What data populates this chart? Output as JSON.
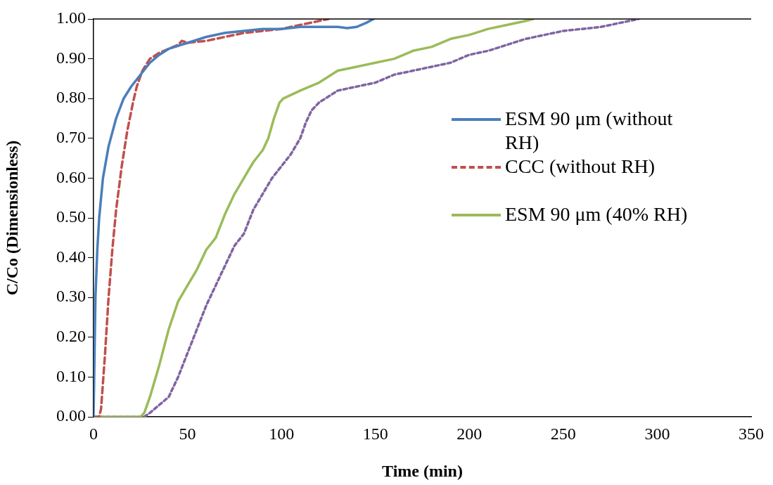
{
  "chart_data": {
    "type": "line",
    "xlabel": "Time (min)",
    "ylabel": "C/Co (Dimensionless)",
    "xlim": [
      0,
      350
    ],
    "xticks": [
      0,
      50,
      100,
      150,
      200,
      250,
      300,
      350
    ],
    "ylim": [
      0,
      1
    ],
    "yticks": [
      {
        "value": 0,
        "label": "0.00"
      },
      {
        "value": 0.1,
        "label": "0.10"
      },
      {
        "value": 0.2,
        "label": "0.20"
      },
      {
        "value": 0.3,
        "label": "0.30"
      },
      {
        "value": 0.4,
        "label": "0.40"
      },
      {
        "value": 0.5,
        "label": "0.50"
      },
      {
        "value": 0.6,
        "label": "0.60"
      },
      {
        "value": 0.7,
        "label": "0.70"
      },
      {
        "value": 0.8,
        "label": "0.80"
      },
      {
        "value": 0.9,
        "label": "0.90"
      },
      {
        "value": 1,
        "label": "1.00"
      }
    ],
    "grid": false,
    "legend": "right",
    "marker": "none",
    "series": [
      {
        "name": "ESM 90 μm (without RH)",
        "color": "#4a7ebb",
        "line_style": "solid",
        "x": [
          0,
          0.5,
          1,
          2,
          3,
          5,
          8,
          12,
          16,
          20,
          25,
          30,
          35,
          40,
          50,
          60,
          70,
          80,
          90,
          100,
          110,
          120,
          130,
          135,
          140,
          145,
          149
        ],
        "values": [
          0,
          0.15,
          0.3,
          0.42,
          0.5,
          0.6,
          0.68,
          0.75,
          0.8,
          0.83,
          0.86,
          0.89,
          0.91,
          0.925,
          0.94,
          0.955,
          0.965,
          0.97,
          0.975,
          0.975,
          0.98,
          0.98,
          0.98,
          0.977,
          0.98,
          0.99,
          1.0
        ]
      },
      {
        "name": "CCC (without RH)",
        "color": "#c0504d",
        "line_style": "dashed",
        "x": [
          0,
          3,
          4,
          6,
          8,
          10,
          12,
          15,
          18,
          21,
          23,
          26,
          30,
          35,
          40,
          45,
          47,
          50,
          60,
          70,
          80,
          90,
          100,
          110,
          120,
          125
        ],
        "values": [
          0,
          0,
          0.02,
          0.15,
          0.3,
          0.42,
          0.52,
          0.63,
          0.72,
          0.79,
          0.83,
          0.87,
          0.9,
          0.915,
          0.925,
          0.935,
          0.945,
          0.94,
          0.945,
          0.955,
          0.965,
          0.97,
          0.975,
          0.985,
          0.995,
          1.0
        ]
      },
      {
        "name": "ESM 90 μm (40% RH)",
        "color": "#9bbb59",
        "line_style": "solid",
        "x": [
          0,
          25,
          27,
          30,
          35,
          40,
          45,
          50,
          55,
          60,
          65,
          70,
          75,
          80,
          85,
          90,
          93,
          96,
          99,
          101,
          110,
          120,
          130,
          140,
          150,
          160,
          170,
          180,
          190,
          200,
          210,
          220,
          230,
          234
        ],
        "values": [
          0,
          0,
          0.01,
          0.05,
          0.13,
          0.22,
          0.29,
          0.33,
          0.37,
          0.42,
          0.45,
          0.51,
          0.56,
          0.6,
          0.64,
          0.67,
          0.7,
          0.75,
          0.79,
          0.8,
          0.82,
          0.84,
          0.87,
          0.88,
          0.89,
          0.9,
          0.92,
          0.93,
          0.95,
          0.96,
          0.975,
          0.985,
          0.995,
          1.0
        ]
      },
      {
        "color": "#8064a2",
        "line_style": "dotted",
        "x": [
          0,
          27,
          30,
          35,
          40,
          45,
          50,
          55,
          60,
          65,
          70,
          75,
          80,
          85,
          90,
          95,
          100,
          105,
          110,
          113,
          116,
          120,
          130,
          140,
          150,
          160,
          170,
          180,
          190,
          200,
          210,
          220,
          230,
          240,
          250,
          260,
          270,
          280,
          290
        ],
        "values": [
          0,
          0,
          0.01,
          0.03,
          0.05,
          0.1,
          0.16,
          0.22,
          0.28,
          0.33,
          0.38,
          0.43,
          0.46,
          0.52,
          0.56,
          0.6,
          0.63,
          0.66,
          0.7,
          0.74,
          0.77,
          0.79,
          0.82,
          0.83,
          0.84,
          0.86,
          0.87,
          0.88,
          0.89,
          0.91,
          0.92,
          0.935,
          0.95,
          0.96,
          0.97,
          0.975,
          0.98,
          0.99,
          1.0
        ]
      }
    ]
  }
}
